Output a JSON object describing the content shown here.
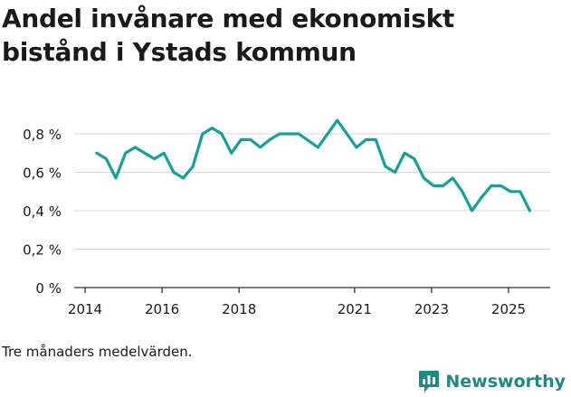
{
  "title": "Andel invånare med ekonomiskt bistånd i Ystads kommun",
  "note": "Tre månaders medelvärden.",
  "brand": {
    "name": "Newsworthy",
    "color": "#1f8a82"
  },
  "chart_data": {
    "type": "line",
    "title": "Andel invånare med ekonomiskt bistånd i Ystads kommun",
    "xlabel": "",
    "ylabel": "",
    "xlim": [
      2014,
      2026
    ],
    "ylim": [
      0,
      0.9
    ],
    "yticks": [
      0,
      0.2,
      0.4,
      0.6,
      0.8
    ],
    "ytick_labels": [
      "0 %",
      "0,2 %",
      "0,4 %",
      "0,6 %",
      "0,8 %"
    ],
    "xticks": [
      2014,
      2016,
      2018,
      2021,
      2023,
      2025
    ],
    "xtick_labels": [
      "2014",
      "2016",
      "2018",
      "2021",
      "2023",
      "2025"
    ],
    "color": "#14a19a",
    "series": [
      {
        "name": "Andel invånare med ekonomiskt bistånd",
        "x": [
          2014.3,
          2014.55,
          2014.8,
          2015.05,
          2015.3,
          2015.55,
          2015.8,
          2016.05,
          2016.3,
          2016.55,
          2016.8,
          2017.05,
          2017.3,
          2017.55,
          2017.8,
          2018.05,
          2018.3,
          2018.55,
          2018.8,
          2019.05,
          2019.3,
          2019.55,
          2020.05,
          2020.55,
          2021.05,
          2021.3,
          2021.55,
          2021.8,
          2022.05,
          2022.3,
          2022.55,
          2022.8,
          2023.05,
          2023.3,
          2023.55,
          2023.8,
          2024.05,
          2024.3,
          2024.55,
          2024.8,
          2025.05,
          2025.3,
          2025.55
        ],
        "values": [
          0.7,
          0.67,
          0.57,
          0.7,
          0.73,
          0.7,
          0.67,
          0.7,
          0.6,
          0.57,
          0.63,
          0.8,
          0.83,
          0.8,
          0.7,
          0.77,
          0.77,
          0.73,
          0.77,
          0.8,
          0.8,
          0.8,
          0.73,
          0.87,
          0.73,
          0.77,
          0.77,
          0.63,
          0.6,
          0.7,
          0.67,
          0.57,
          0.53,
          0.53,
          0.57,
          0.5,
          0.4,
          0.47,
          0.53,
          0.53,
          0.5,
          0.5,
          0.4
        ]
      }
    ]
  }
}
